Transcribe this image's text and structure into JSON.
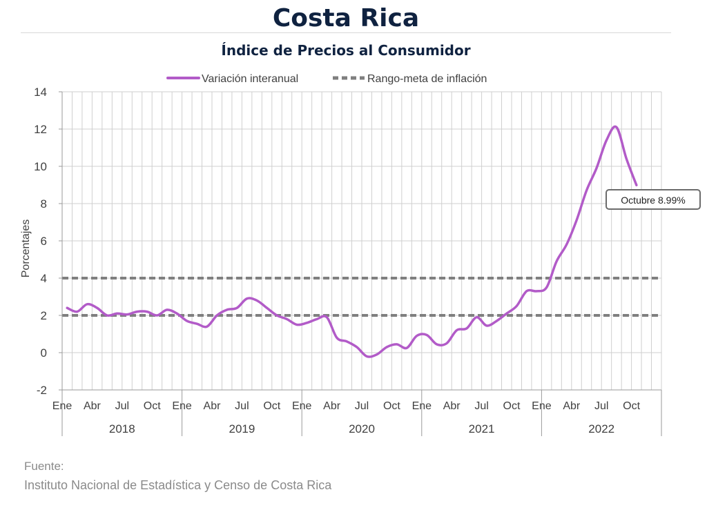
{
  "header": {
    "title": "Costa Rica",
    "subtitle": "Índice de Precios al Consumidor"
  },
  "source": {
    "label": "Fuente:",
    "text": "Instituto Nacional de Estadística y Censo de Costa Rica"
  },
  "chart_data": {
    "type": "line",
    "ylabel": "Porcentajes",
    "ylim": [
      -2,
      14
    ],
    "yticks": [
      "-2",
      "0",
      "2",
      "4",
      "6",
      "8",
      "10",
      "12",
      "14"
    ],
    "grid": true,
    "legend_position": "top-center",
    "colors": {
      "series": "#b25bc8",
      "target": "#7f7f7f",
      "grid": "#cfcfcf"
    },
    "month_labels": [
      "Ene",
      "Abr",
      "Jul",
      "Oct"
    ],
    "years": [
      "2018",
      "2019",
      "2020",
      "2021",
      "2022"
    ],
    "series": [
      {
        "name": "Variación interanual",
        "x": [
          "2018-01",
          "2018-02",
          "2018-03",
          "2018-04",
          "2018-05",
          "2018-06",
          "2018-07",
          "2018-08",
          "2018-09",
          "2018-10",
          "2018-11",
          "2018-12",
          "2019-01",
          "2019-02",
          "2019-03",
          "2019-04",
          "2019-05",
          "2019-06",
          "2019-07",
          "2019-08",
          "2019-09",
          "2019-10",
          "2019-11",
          "2019-12",
          "2020-01",
          "2020-02",
          "2020-03",
          "2020-04",
          "2020-05",
          "2020-06",
          "2020-07",
          "2020-08",
          "2020-09",
          "2020-10",
          "2020-11",
          "2020-12",
          "2021-01",
          "2021-02",
          "2021-03",
          "2021-04",
          "2021-05",
          "2021-06",
          "2021-07",
          "2021-08",
          "2021-09",
          "2021-10",
          "2021-11",
          "2021-12",
          "2022-01",
          "2022-02",
          "2022-03",
          "2022-04",
          "2022-05",
          "2022-06",
          "2022-07",
          "2022-08",
          "2022-09",
          "2022-10"
        ],
        "values": [
          2.4,
          2.2,
          2.6,
          2.4,
          2.0,
          2.1,
          2.05,
          2.2,
          2.2,
          2.0,
          2.3,
          2.1,
          1.7,
          1.55,
          1.4,
          2.0,
          2.3,
          2.4,
          2.9,
          2.8,
          2.4,
          2.0,
          1.8,
          1.5,
          1.6,
          1.8,
          1.9,
          0.8,
          0.6,
          0.3,
          -0.2,
          -0.1,
          0.3,
          0.45,
          0.25,
          0.9,
          0.95,
          0.45,
          0.5,
          1.2,
          1.3,
          1.9,
          1.45,
          1.7,
          2.1,
          2.5,
          3.3,
          3.3,
          3.5,
          4.9,
          5.8,
          7.1,
          8.7,
          9.9,
          11.4,
          12.1,
          10.4,
          8.99
        ]
      },
      {
        "name": "Rango-meta de inflación",
        "style": "dashed",
        "lower": 2,
        "upper": 4
      }
    ],
    "annotation": {
      "text": "Octubre 8.99%",
      "point": "2022-10",
      "value": 8.99
    }
  }
}
